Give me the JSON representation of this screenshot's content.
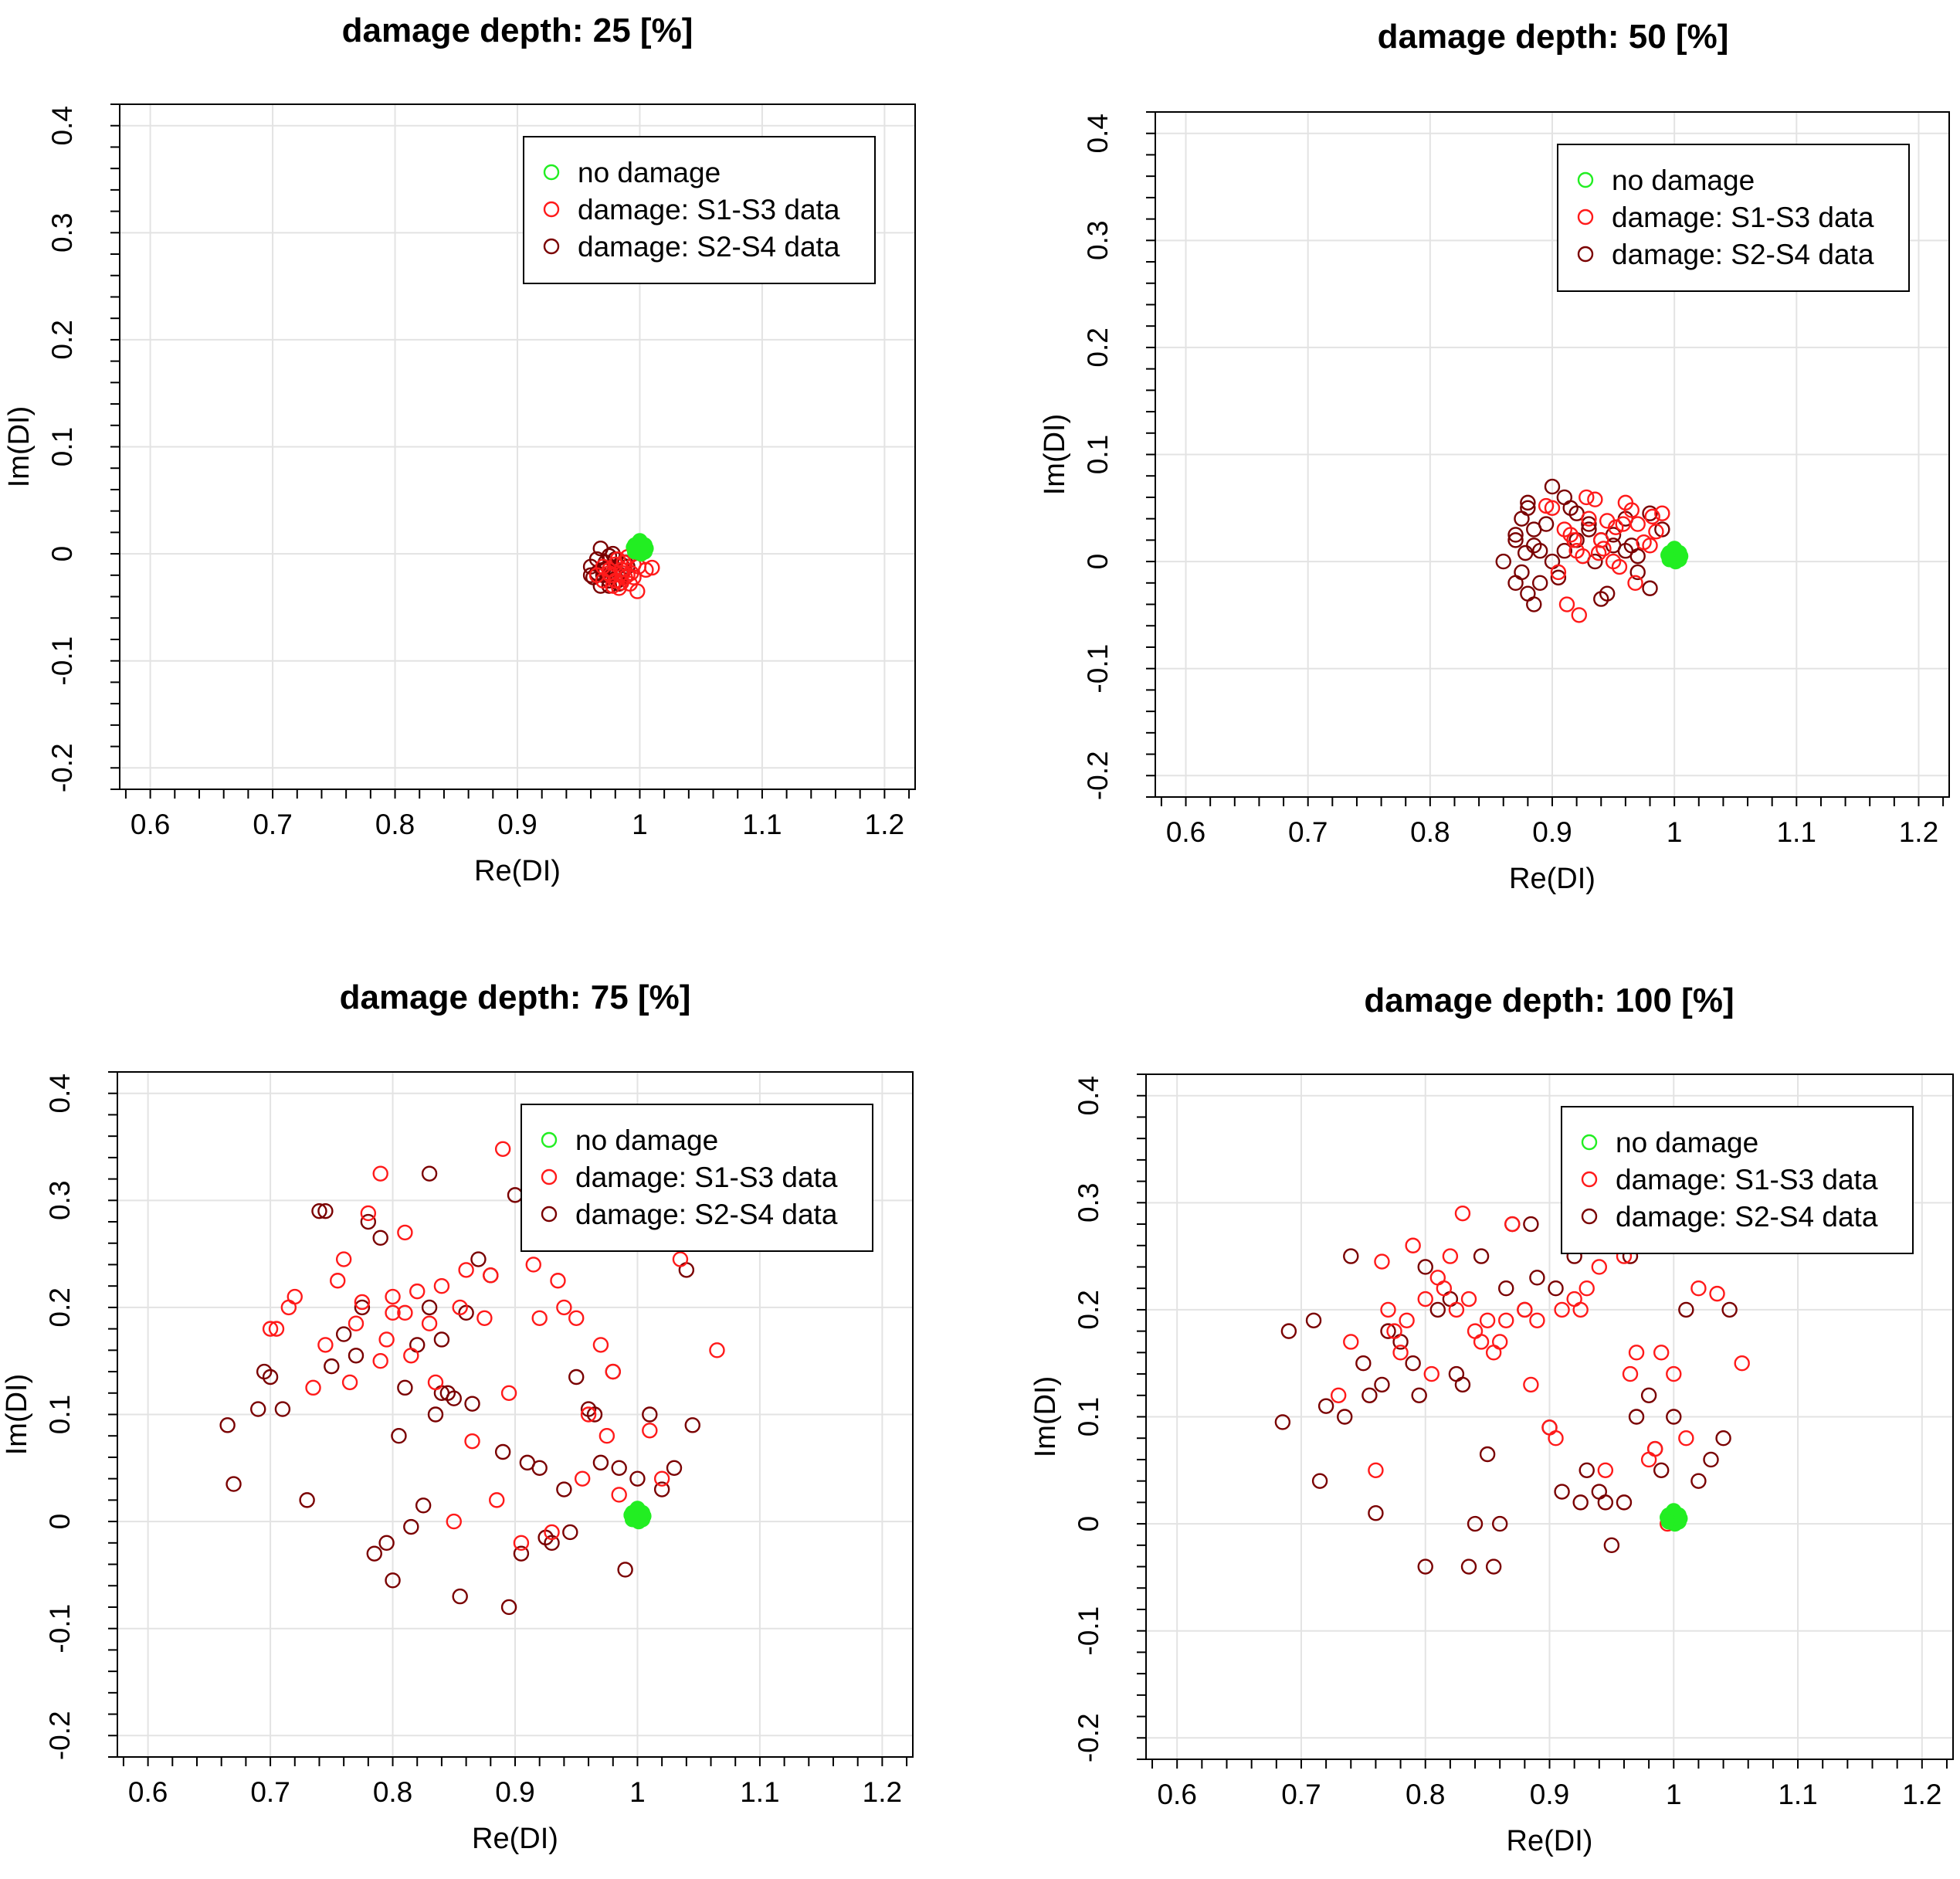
{
  "colors": {
    "no_damage": "#22ee22",
    "s1s3": "#ff1a1a",
    "s2s4": "#7a0000",
    "grid": "#e3e3e3",
    "axis": "#000000"
  },
  "chart_data": [
    {
      "type": "scatter",
      "title": "damage depth: 25 [%]",
      "xlabel": "Re(DI)",
      "ylabel": "Im(DI)",
      "xlim": [
        0.6,
        1.2
      ],
      "ylim": [
        -0.2,
        0.4
      ],
      "xticks": [
        "0.6",
        "0.7",
        "0.8",
        "0.9",
        "1",
        "1.1",
        "1.2"
      ],
      "yticks": [
        "-0.2",
        "-0.1",
        "0",
        "0.1",
        "0.2",
        "0.3",
        "0.4"
      ],
      "grid": true,
      "legend_position": "top-right",
      "legend": [
        "no damage",
        "damage: S1-S3 data",
        "damage: S2-S4 data"
      ],
      "series": [
        {
          "name": "no damage",
          "x": [
            1.0,
            1.002,
            0.998,
            1.004,
            0.996,
            1.001,
            0.999,
            1.003,
            0.997,
            1.005,
            0.995,
            1.002,
            0.998,
            1.0,
            1.004,
            0.996
          ],
          "y": [
            0.005,
            0.007,
            0.003,
            0.002,
            0.008,
            0.0,
            0.01,
            0.006,
            0.004,
            0.005,
            0.006,
            0.001,
            0.009,
            0.012,
            0.008,
            0.002
          ]
        },
        {
          "name": "damage: S1-S3 data",
          "x": [
            0.985,
            0.99,
            0.975,
            0.98,
            0.995,
            0.97,
            0.978,
            0.988,
            0.982,
            0.992,
            1.005,
            1.01,
            0.998,
            0.987,
            0.976,
            0.983,
            0.993,
            0.97,
            0.98,
            0.99,
            0.985,
            0.995,
            0.975,
            0.965,
            0.999,
            0.986
          ],
          "y": [
            -0.015,
            -0.02,
            -0.018,
            -0.025,
            -0.01,
            -0.012,
            -0.03,
            -0.022,
            -0.005,
            -0.028,
            -0.015,
            -0.013,
            -0.035,
            -0.008,
            -0.02,
            -0.032,
            -0.018,
            -0.025,
            -0.01,
            -0.003,
            -0.027,
            -0.022,
            -0.015,
            -0.02,
            -0.012,
            -0.018
          ]
        },
        {
          "name": "damage: S2-S4 data",
          "x": [
            0.96,
            0.965,
            0.97,
            0.975,
            0.98,
            0.985,
            0.968,
            0.972,
            0.978,
            0.983,
            0.962,
            0.975,
            0.98,
            0.97,
            0.965,
            0.985,
            0.99,
            0.975,
            0.968,
            0.978,
            0.982,
            0.972,
            0.96,
            0.988,
            0.976
          ],
          "y": [
            -0.012,
            -0.005,
            -0.02,
            -0.025,
            -0.015,
            -0.01,
            -0.03,
            -0.008,
            -0.018,
            -0.028,
            -0.022,
            -0.002,
            -0.005,
            -0.015,
            -0.018,
            -0.02,
            -0.012,
            -0.03,
            0.005,
            0.0,
            -0.025,
            -0.015,
            -0.02,
            -0.008,
            -0.012
          ]
        }
      ]
    },
    {
      "type": "scatter",
      "title": "damage depth: 50 [%]",
      "xlabel": "Re(DI)",
      "ylabel": "Im(DI)",
      "xlim": [
        0.6,
        1.2
      ],
      "ylim": [
        -0.2,
        0.4
      ],
      "xticks": [
        "0.6",
        "0.7",
        "0.8",
        "0.9",
        "1",
        "1.1",
        "1.2"
      ],
      "yticks": [
        "-0.2",
        "-0.1",
        "0",
        "0.1",
        "0.2",
        "0.3",
        "0.4"
      ],
      "grid": true,
      "legend_position": "top-right",
      "legend": [
        "no damage",
        "damage: S1-S3 data",
        "damage: S2-S4 data"
      ],
      "series": [
        {
          "name": "no damage",
          "x": [
            1.0,
            1.002,
            0.998,
            1.004,
            0.996,
            1.001,
            0.999,
            1.003,
            0.997,
            1.005,
            0.995,
            1.002,
            0.998,
            1.0,
            1.004,
            0.996
          ],
          "y": [
            0.005,
            0.007,
            0.003,
            0.002,
            0.008,
            0.0,
            0.01,
            0.006,
            0.004,
            0.005,
            0.006,
            0.001,
            0.009,
            0.012,
            0.008,
            0.002
          ]
        },
        {
          "name": "damage: S1-S3 data",
          "x": [
            0.9,
            0.91,
            0.92,
            0.93,
            0.94,
            0.95,
            0.96,
            0.97,
            0.98,
            0.99,
            0.905,
            0.915,
            0.925,
            0.935,
            0.945,
            0.955,
            0.965,
            0.975,
            0.985,
            0.895,
            0.912,
            0.922,
            0.938,
            0.952,
            0.968,
            0.982,
            0.918,
            0.928,
            0.942,
            0.958
          ],
          "y": [
            0.05,
            0.03,
            0.01,
            0.04,
            0.02,
            0.0,
            0.055,
            0.035,
            0.015,
            0.045,
            -0.01,
            0.025,
            0.005,
            0.058,
            0.038,
            -0.005,
            0.048,
            0.018,
            0.028,
            0.052,
            -0.04,
            -0.05,
            0.008,
            0.032,
            -0.02,
            0.042,
            0.02,
            0.06,
            0.012,
            0.035
          ]
        },
        {
          "name": "damage: S2-S4 data",
          "x": [
            0.86,
            0.87,
            0.875,
            0.88,
            0.885,
            0.89,
            0.87,
            0.875,
            0.88,
            0.885,
            0.89,
            0.9,
            0.91,
            0.92,
            0.93,
            0.94,
            0.95,
            0.96,
            0.97,
            0.98,
            0.99,
            0.9,
            0.91,
            0.92,
            0.93,
            0.94,
            0.95,
            0.96,
            0.97,
            0.98,
            0.88,
            0.885,
            0.87,
            0.878,
            0.895,
            0.905,
            0.915,
            0.935,
            0.945,
            0.965
          ],
          "y": [
            0.0,
            0.02,
            0.04,
            0.05,
            0.03,
            0.01,
            -0.02,
            -0.01,
            -0.03,
            -0.04,
            -0.02,
            0.07,
            0.06,
            0.045,
            0.03,
            0.02,
            0.015,
            0.01,
            -0.01,
            0.045,
            0.03,
            0.0,
            0.01,
            0.02,
            0.035,
            -0.035,
            0.025,
            0.04,
            0.005,
            -0.025,
            0.055,
            0.015,
            0.025,
            0.008,
            0.035,
            -0.015,
            0.05,
            0.0,
            -0.03,
            0.015
          ]
        }
      ]
    },
    {
      "type": "scatter",
      "title": "damage depth: 75 [%]",
      "xlabel": "Re(DI)",
      "ylabel": "Im(DI)",
      "xlim": [
        0.6,
        1.2
      ],
      "ylim": [
        -0.2,
        0.4
      ],
      "xticks": [
        "0.6",
        "0.7",
        "0.8",
        "0.9",
        "1",
        "1.1",
        "1.2"
      ],
      "yticks": [
        "-0.2",
        "-0.1",
        "0",
        "0.1",
        "0.2",
        "0.3",
        "0.4"
      ],
      "grid": true,
      "legend_position": "top-right",
      "legend": [
        "no damage",
        "damage: S1-S3 data",
        "damage: S2-S4 data"
      ],
      "series": [
        {
          "name": "no damage",
          "x": [
            1.0,
            1.002,
            0.998,
            1.004,
            0.996,
            1.001,
            0.999,
            1.003,
            0.997,
            1.005,
            0.995,
            1.002,
            0.998,
            1.0,
            1.004,
            0.996
          ],
          "y": [
            0.005,
            0.007,
            0.003,
            0.002,
            0.008,
            0.0,
            0.01,
            0.006,
            0.004,
            0.005,
            0.006,
            0.001,
            0.009,
            0.012,
            0.008,
            0.002
          ]
        },
        {
          "name": "damage: S1-S3 data",
          "x": [
            0.79,
            0.89,
            0.78,
            0.81,
            0.76,
            0.72,
            0.7,
            0.745,
            0.77,
            0.8,
            0.82,
            0.84,
            0.86,
            0.88,
            0.915,
            0.935,
            0.95,
            0.97,
            0.98,
            1.01,
            1.035,
            1.065,
            0.755,
            0.775,
            0.795,
            0.815,
            0.835,
            0.855,
            0.875,
            0.895,
            0.92,
            0.94,
            0.96,
            0.985,
            1.02,
            0.735,
            0.765,
            0.79,
            0.81,
            0.83,
            0.85,
            0.865,
            0.885,
            0.905,
            0.93,
            0.955,
            0.975,
            0.715,
            0.705,
            0.8
          ],
          "y": [
            0.325,
            0.348,
            0.288,
            0.27,
            0.245,
            0.21,
            0.18,
            0.165,
            0.185,
            0.195,
            0.215,
            0.22,
            0.235,
            0.23,
            0.24,
            0.225,
            0.19,
            0.165,
            0.14,
            0.085,
            0.245,
            0.16,
            0.225,
            0.205,
            0.17,
            0.155,
            0.13,
            0.2,
            0.19,
            0.12,
            0.19,
            0.2,
            0.1,
            0.025,
            0.04,
            0.125,
            0.13,
            0.15,
            0.195,
            0.185,
            0.0,
            0.075,
            0.02,
            -0.02,
            -0.01,
            0.04,
            0.08,
            0.2,
            0.18,
            0.21
          ]
        },
        {
          "name": "damage: S2-S4 data",
          "x": [
            0.665,
            0.67,
            0.69,
            0.695,
            0.7,
            0.71,
            0.73,
            0.74,
            0.75,
            0.76,
            0.77,
            0.78,
            0.79,
            0.8,
            0.81,
            0.82,
            0.83,
            0.84,
            0.85,
            0.86,
            0.87,
            0.88,
            0.89,
            0.9,
            0.91,
            0.92,
            0.93,
            0.94,
            0.95,
            0.96,
            0.97,
            0.98,
            0.99,
            1.0,
            1.01,
            1.02,
            1.03,
            1.04,
            1.045,
            0.745,
            0.785,
            0.805,
            0.825,
            0.845,
            0.835,
            0.795,
            0.775,
            0.865,
            0.905,
            0.925,
            0.945,
            0.965,
            0.985,
            0.895,
            0.855,
            0.815,
            0.83,
            0.84
          ],
          "y": [
            0.09,
            0.035,
            0.105,
            0.14,
            0.135,
            0.105,
            0.02,
            0.29,
            0.145,
            0.175,
            0.155,
            0.28,
            0.265,
            -0.055,
            0.125,
            0.165,
            0.325,
            0.12,
            0.115,
            0.195,
            0.245,
            0.23,
            0.065,
            0.305,
            0.055,
            0.05,
            -0.02,
            0.03,
            0.135,
            0.105,
            0.055,
            0.14,
            -0.045,
            0.04,
            0.1,
            0.03,
            0.05,
            0.235,
            0.09,
            0.29,
            -0.03,
            0.08,
            0.015,
            0.12,
            0.1,
            -0.02,
            0.2,
            0.11,
            -0.03,
            -0.015,
            -0.01,
            0.1,
            0.05,
            -0.08,
            -0.07,
            -0.005,
            0.2,
            0.17
          ]
        }
      ]
    },
    {
      "type": "scatter",
      "title": "damage depth: 100 [%]",
      "xlabel": "Re(DI)",
      "ylabel": "Im(DI)",
      "xlim": [
        0.6,
        1.2
      ],
      "ylim": [
        -0.2,
        0.4
      ],
      "xticks": [
        "0.6",
        "0.7",
        "0.8",
        "0.9",
        "1",
        "1.1",
        "1.2"
      ],
      "yticks": [
        "-0.2",
        "-0.1",
        "0",
        "0.1",
        "0.2",
        "0.3",
        "0.4"
      ],
      "grid": true,
      "legend_position": "top-right",
      "legend": [
        "no damage",
        "damage: S1-S3 data",
        "damage: S2-S4 data"
      ],
      "series": [
        {
          "name": "no damage",
          "x": [
            1.0,
            1.002,
            0.998,
            1.004,
            0.996,
            1.001,
            0.999,
            1.003,
            0.997,
            1.005,
            0.995,
            1.002,
            0.998,
            1.0,
            1.004,
            0.996
          ],
          "y": [
            0.005,
            0.007,
            0.003,
            0.002,
            0.008,
            0.0,
            0.01,
            0.006,
            0.004,
            0.005,
            0.006,
            0.001,
            0.009,
            0.012,
            0.008,
            0.002
          ]
        },
        {
          "name": "damage: S1-S3 data",
          "x": [
            0.73,
            0.74,
            0.76,
            0.77,
            0.78,
            0.79,
            0.8,
            0.81,
            0.82,
            0.83,
            0.84,
            0.85,
            0.86,
            0.87,
            0.88,
            0.89,
            0.9,
            0.91,
            0.92,
            0.93,
            0.94,
            0.95,
            0.96,
            0.97,
            0.98,
            0.99,
            1.0,
            1.01,
            1.02,
            1.035,
            1.055,
            0.765,
            0.785,
            0.805,
            0.825,
            0.845,
            0.865,
            0.885,
            0.905,
            0.925,
            0.945,
            0.965,
            0.985,
            0.995,
            0.775,
            0.815,
            0.835,
            0.855
          ],
          "y": [
            0.12,
            0.17,
            0.05,
            0.2,
            0.16,
            0.26,
            0.21,
            0.23,
            0.25,
            0.29,
            0.18,
            0.19,
            0.17,
            0.28,
            0.2,
            0.19,
            0.09,
            0.2,
            0.21,
            0.22,
            0.24,
            0.26,
            0.25,
            0.16,
            0.06,
            0.16,
            0.14,
            0.08,
            0.22,
            0.215,
            0.15,
            0.245,
            0.19,
            0.14,
            0.2,
            0.17,
            0.19,
            0.13,
            0.08,
            0.2,
            0.05,
            0.14,
            0.07,
            0.0,
            0.18,
            0.22,
            0.21,
            0.16
          ]
        },
        {
          "name": "damage: S2-S4 data",
          "x": [
            0.685,
            0.69,
            0.71,
            0.72,
            0.74,
            0.75,
            0.755,
            0.76,
            0.77,
            0.78,
            0.79,
            0.8,
            0.81,
            0.82,
            0.83,
            0.84,
            0.85,
            0.86,
            0.87,
            0.88,
            0.89,
            0.9,
            0.91,
            0.92,
            0.93,
            0.94,
            0.95,
            0.96,
            0.97,
            0.98,
            0.99,
            1.0,
            1.01,
            1.02,
            1.03,
            1.04,
            1.045,
            0.715,
            0.735,
            0.765,
            0.795,
            0.825,
            0.845,
            0.865,
            0.885,
            0.905,
            0.925,
            0.945,
            0.965,
            0.985,
            0.835,
            0.855,
            0.8
          ],
          "y": [
            0.095,
            0.18,
            0.19,
            0.11,
            0.25,
            0.15,
            0.12,
            0.01,
            0.18,
            0.17,
            0.15,
            0.24,
            0.2,
            0.21,
            0.13,
            0.0,
            0.065,
            0.0,
            0.28,
            0.2,
            0.23,
            0.09,
            0.03,
            0.25,
            0.05,
            0.03,
            -0.02,
            0.02,
            0.1,
            0.12,
            0.05,
            0.1,
            0.2,
            0.04,
            0.06,
            0.08,
            0.2,
            0.04,
            0.1,
            0.13,
            0.12,
            0.14,
            0.25,
            0.22,
            0.28,
            0.22,
            0.02,
            0.02,
            0.25,
            0.07,
            -0.04,
            -0.04,
            -0.04
          ]
        }
      ]
    }
  ]
}
